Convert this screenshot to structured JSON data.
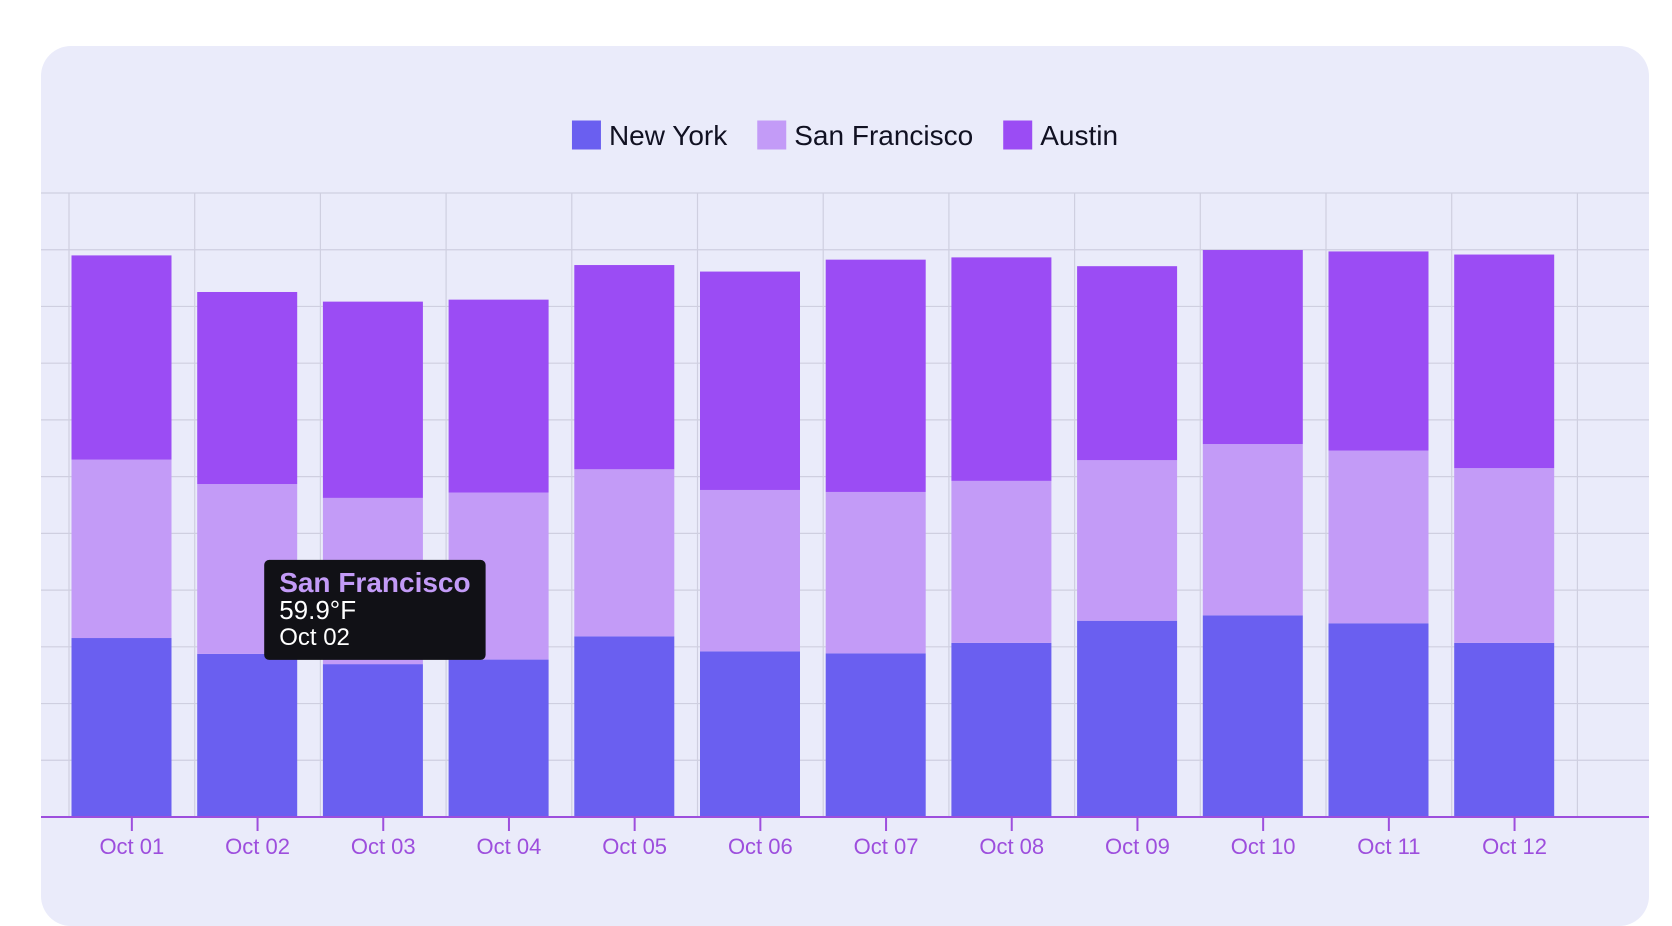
{
  "colors": {
    "background": "#eaebfa",
    "grid": "#cfcfe0",
    "axis": "#9d4edd",
    "tooltip_bg": "#111116"
  },
  "chart_data": {
    "type": "bar",
    "stacked": true,
    "categories": [
      "Oct 01",
      "Oct 02",
      "Oct 03",
      "Oct 04",
      "Oct 05",
      "Oct 06",
      "Oct 07",
      "Oct 08",
      "Oct 09",
      "Oct 10",
      "Oct 11",
      "Oct 12"
    ],
    "series": [
      {
        "name": "New York",
        "color": "#6a5ff0",
        "values": [
          63.1,
          57.5,
          53.9,
          55.5,
          63.7,
          58.4,
          57.7,
          61.4,
          69.2,
          71.1,
          68.3,
          61.4
        ]
      },
      {
        "name": "San Francisco",
        "color": "#c39bf7",
        "values": [
          62.9,
          59.9,
          58.6,
          58.9,
          58.9,
          56.9,
          56.9,
          57.1,
          56.6,
          60.4,
          60.9,
          61.6
        ]
      },
      {
        "name": "Austin",
        "color": "#9b4cf4",
        "values": [
          72.0,
          67.7,
          69.2,
          68.0,
          72.0,
          77.0,
          81.9,
          78.8,
          68.4,
          68.4,
          70.2,
          75.3
        ]
      }
    ],
    "ylim": [
      0,
      220
    ],
    "y_grid_step": 20,
    "y_ticks_shown": false,
    "grid": true,
    "legend_position": "top-center",
    "title": "",
    "xlabel": "",
    "ylabel": "",
    "tooltip": {
      "series": "San Francisco",
      "value": "59.9°F",
      "category": "Oct 02"
    }
  }
}
